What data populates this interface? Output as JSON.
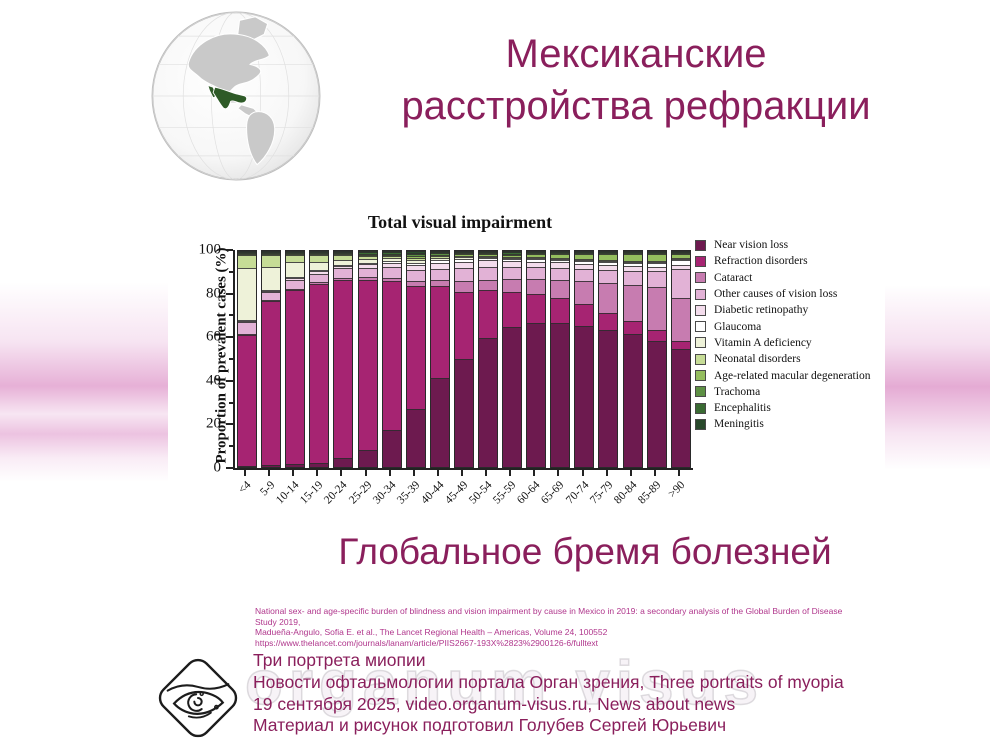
{
  "slide": {
    "title_line1": "Мексиканские",
    "title_line2": "расстройства рефракции",
    "subtitle": "Глобальное бремя болезней",
    "accent_color": "#8a1f5c",
    "watermark": "organum visus"
  },
  "globe": {
    "highlighted_country": "Mexico",
    "land_color": "#c9c9c9",
    "highlight_color": "#2e5a27"
  },
  "chart_data": {
    "type": "bar",
    "subtype": "100%-stacked-bar",
    "title": "Total visual impairment",
    "xlabel": "",
    "ylabel": "Proportion of prevalent cases (%)",
    "ylim": [
      0,
      100
    ],
    "yticks": [
      0,
      20,
      40,
      60,
      80,
      100
    ],
    "yticks_minor": [
      10,
      30,
      50,
      70,
      90
    ],
    "grid": false,
    "legend_position": "right",
    "categories": [
      "<4",
      "5-9",
      "10-14",
      "15-19",
      "20-24",
      "25-29",
      "30-34",
      "35-39",
      "40-44",
      "45-49",
      "50-54",
      "55-59",
      "60-64",
      "65-69",
      "70-74",
      "75-79",
      "80-84",
      "85-89",
      ">90"
    ],
    "series": [
      {
        "name": "Near vision loss",
        "color": "#6d1a4f",
        "values": [
          0.3,
          1,
          1.5,
          2,
          4,
          8,
          17,
          27,
          41,
          50,
          60,
          65,
          67,
          67,
          66,
          64,
          62,
          59,
          55
        ]
      },
      {
        "name": "Refraction disorders",
        "color": "#a62472",
        "values": [
          62,
          77,
          81.5,
          83,
          83,
          79,
          69,
          57,
          43,
          31,
          22,
          16.5,
          13.5,
          12,
          10,
          8,
          6,
          5,
          4
        ]
      },
      {
        "name": "Cataract",
        "color": "#c77cb0",
        "values": [
          0.3,
          0.5,
          0.5,
          1,
          1,
          1,
          1.5,
          2,
          2.5,
          5,
          5,
          6,
          7,
          8.5,
          11,
          14,
          17,
          20,
          20
        ]
      },
      {
        "name": "Other causes of vision loss",
        "color": "#e2b2d6",
        "values": [
          5.5,
          3.5,
          4.5,
          4,
          4.5,
          4.5,
          5,
          5,
          5,
          6,
          6,
          5.5,
          5.5,
          5.5,
          5.5,
          6,
          6.5,
          7.5,
          13.5
        ]
      },
      {
        "name": "Diabetic retinopathy",
        "color": "#f3dcec",
        "values": [
          0.3,
          0.5,
          0.5,
          1,
          1,
          1.5,
          2,
          2.5,
          3,
          3,
          3,
          2.5,
          2.5,
          2.5,
          2.3,
          2.3,
          2.2,
          2,
          2
        ]
      },
      {
        "name": "Glaucoma",
        "color": "#ffffff",
        "values": [
          0.3,
          0.5,
          0.5,
          0.5,
          0.5,
          0.5,
          0.7,
          1,
          1.5,
          1.5,
          1.2,
          1,
          1,
          1.2,
          1.3,
          1.5,
          1.7,
          2,
          2.2
        ]
      },
      {
        "name": "Vitamin A deficiency",
        "color": "#eef2d9",
        "values": [
          24.5,
          11,
          7,
          4,
          2.5,
          2,
          1.5,
          1.5,
          1,
          0.8,
          0.5,
          0.4,
          0.3,
          0.3,
          0.2,
          0.2,
          0.2,
          0.1,
          0.1
        ]
      },
      {
        "name": "Neonatal disorders",
        "color": "#c6dc96",
        "values": [
          6.3,
          5.5,
          3.5,
          3,
          2,
          1.5,
          1,
          1,
          0.8,
          0.5,
          0.3,
          0.2,
          0.2,
          0.2,
          0.1,
          0.1,
          0.1,
          0.1,
          0.1
        ]
      },
      {
        "name": "Age-related macular degeneration",
        "color": "#94bd5e",
        "values": [
          0,
          0,
          0,
          0,
          0,
          0.2,
          0.5,
          0.5,
          0.5,
          0.7,
          0.8,
          1.2,
          1.5,
          1.8,
          2.4,
          2.7,
          3.1,
          3.2,
          2
        ]
      },
      {
        "name": "Trachoma",
        "color": "#5d9044",
        "values": [
          0,
          0,
          0,
          0.5,
          0.5,
          0.5,
          0.5,
          1,
          0.7,
          0.5,
          0.4,
          0.5,
          0.5,
          0.4,
          0.4,
          0.4,
          0.4,
          0.4,
          0.4
        ]
      },
      {
        "name": "Encephalitis",
        "color": "#3a6b33",
        "values": [
          0.3,
          0.3,
          0.3,
          0.6,
          0.6,
          0.7,
          0.7,
          0.7,
          0.5,
          0.5,
          0.4,
          0.6,
          0.5,
          0.3,
          0.4,
          0.4,
          0.4,
          0.35,
          0.35
        ]
      },
      {
        "name": "Meningitis",
        "color": "#28492b",
        "values": [
          0.2,
          0.2,
          0.2,
          0.4,
          0.4,
          0.6,
          0.6,
          0.8,
          0.5,
          0.5,
          0.4,
          0.6,
          0.5,
          0.3,
          0.4,
          0.4,
          0.4,
          0.35,
          0.35
        ]
      }
    ]
  },
  "citation": {
    "line1": "National sex- and age-specific burden of blindness and vision impairment by cause in Mexico in 2019: a secondary analysis of the Global Burden of Disease Study 2019,",
    "line2": "Madueña-Angulo, Sofia E. et al., The Lancet Regional Health – Americas, Volume 24, 100552",
    "line3": "https://www.thelancet.com/journals/lanam/article/PIIS2667-193X%2823%2900126-6/fulltext"
  },
  "footer": {
    "line1": "Три портрета миопии",
    "line2": "Новости офтальмологии портала Орган зрения, Three portraits of myopia",
    "line3": "19 сентября 2025, video.organum-visus.ru, News about news",
    "line4": "Материал и рисунок подготовил Голубев Сергей Юрьевич"
  }
}
